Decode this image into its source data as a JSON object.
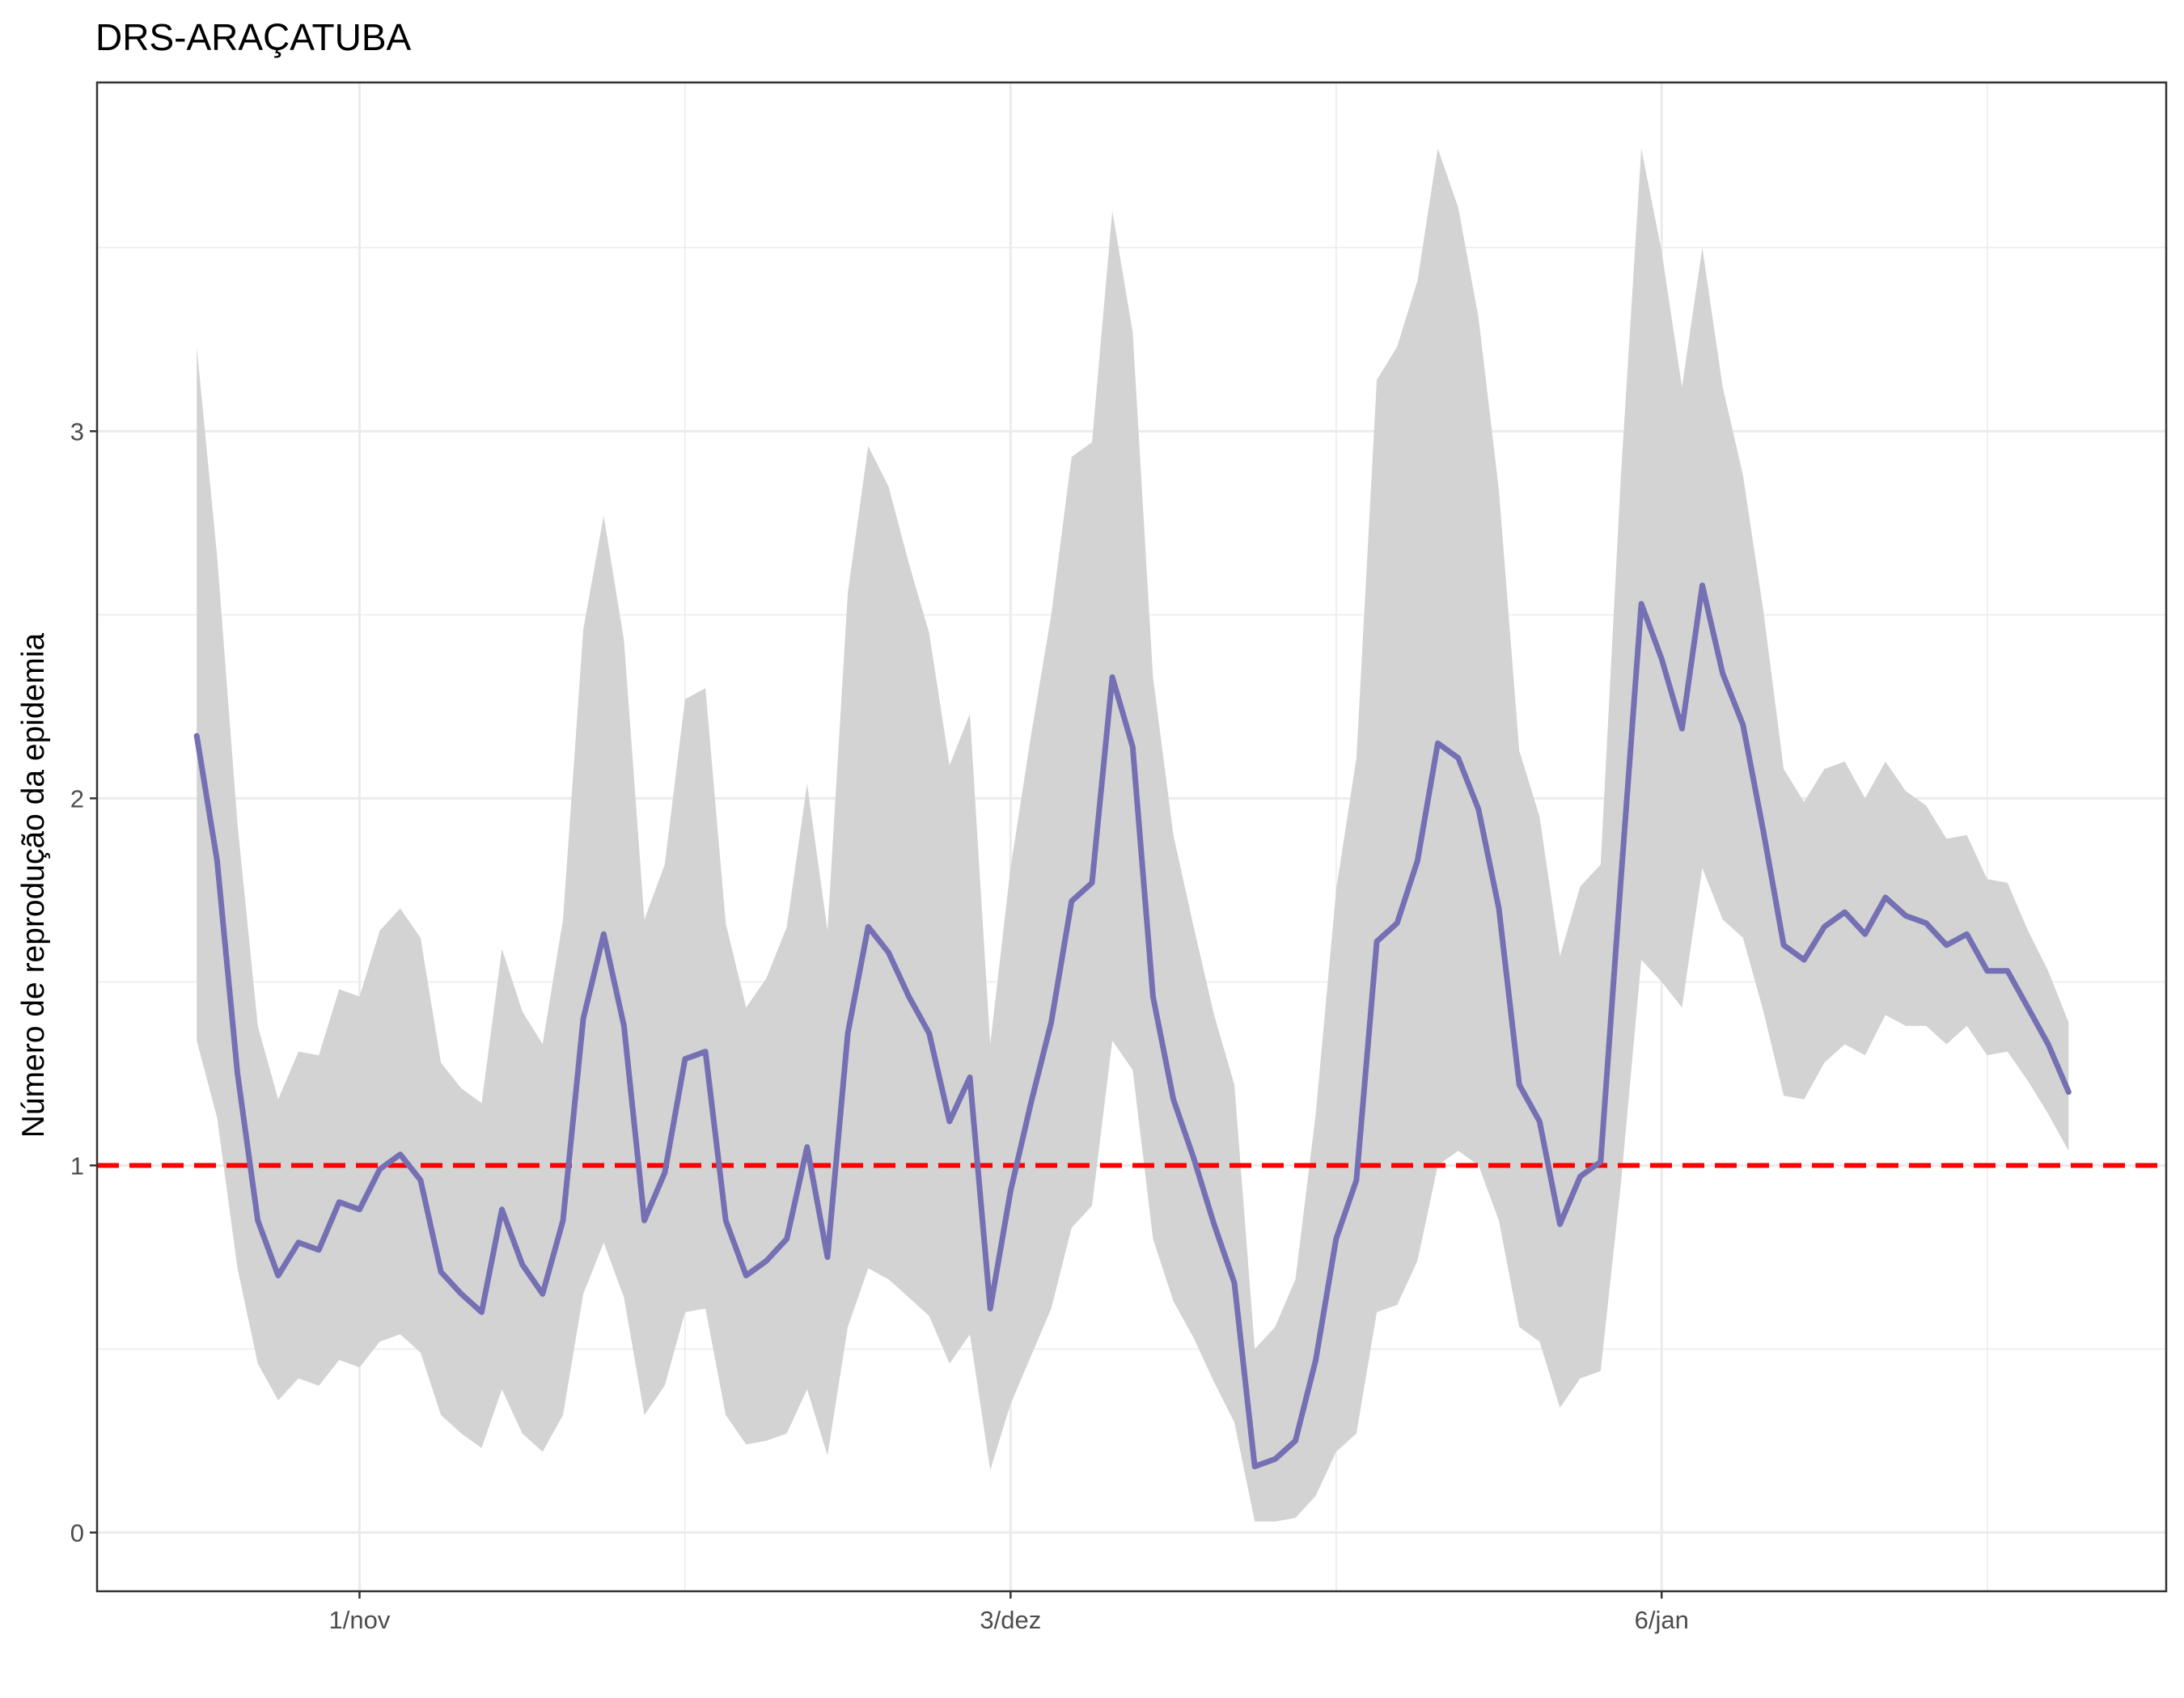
{
  "chart_data": {
    "type": "line",
    "title": "DRS-ARAÇATUBA",
    "xlabel": "",
    "ylabel": "Número de reprodução da epidemia",
    "x_tick_labels": [
      "1/nov",
      "3/dez",
      "6/jan"
    ],
    "y_tick_labels": [
      "0",
      "1",
      "2",
      "3"
    ],
    "y_ticks": [
      0,
      1,
      2,
      3
    ],
    "ylim": [
      -0.16,
      3.95
    ],
    "xlim": [
      -4.9,
      96.8
    ],
    "grid": true,
    "colors": {
      "line": "#7570b3",
      "ribbon": "#d3d3d3",
      "threshold": "#ff0000",
      "grid": "#ebebeb",
      "frame": "#333333"
    },
    "threshold": 1,
    "series": [
      {
        "values": [
          2.17,
          1.83,
          1.25,
          0.85,
          0.7,
          0.79,
          0.77,
          0.9,
          0.88,
          0.99,
          1.03,
          0.96,
          0.71,
          0.65,
          0.6,
          0.88,
          0.73,
          0.65,
          0.85,
          1.4,
          1.63,
          1.38,
          0.85,
          0.98,
          1.29,
          1.31,
          0.85,
          0.7,
          0.74,
          0.8,
          1.05,
          0.75,
          1.36,
          1.65,
          1.58,
          1.46,
          1.36,
          1.12,
          1.24,
          0.61,
          0.93,
          1.17,
          1.39,
          1.72,
          1.77,
          2.33,
          2.14,
          1.46,
          1.18,
          1.02,
          0.84,
          0.68,
          0.18,
          0.2,
          0.25,
          0.47,
          0.8,
          0.96,
          1.61,
          1.66,
          1.83,
          2.15,
          2.11,
          1.97,
          1.7,
          1.22,
          1.12,
          0.84,
          0.97,
          1.01,
          1.78,
          2.53,
          2.38,
          2.19,
          2.58,
          2.34,
          2.2,
          1.91,
          1.6,
          1.56,
          1.65,
          1.69,
          1.63,
          1.73,
          1.68,
          1.66,
          1.6,
          1.63,
          1.53,
          1.53,
          1.43,
          1.33,
          1.2
        ]
      }
    ],
    "ribbon_upper": [
      3.23,
      2.66,
      1.93,
      1.38,
      1.18,
      1.31,
      1.3,
      1.48,
      1.46,
      1.64,
      1.7,
      1.62,
      1.28,
      1.21,
      1.17,
      1.59,
      1.42,
      1.33,
      1.67,
      2.46,
      2.77,
      2.43,
      1.67,
      1.82,
      2.27,
      2.3,
      1.66,
      1.43,
      1.51,
      1.65,
      2.04,
      1.64,
      2.56,
      2.96,
      2.85,
      2.64,
      2.45,
      2.09,
      2.23,
      1.33,
      1.81,
      2.17,
      2.5,
      2.93,
      2.97,
      3.6,
      3.27,
      2.33,
      1.9,
      1.65,
      1.41,
      1.22,
      0.5,
      0.56,
      0.69,
      1.14,
      1.75,
      2.11,
      3.14,
      3.23,
      3.41,
      3.77,
      3.61,
      3.31,
      2.84,
      2.13,
      1.95,
      1.57,
      1.76,
      1.82,
      2.88,
      3.77,
      3.49,
      3.12,
      3.5,
      3.12,
      2.88,
      2.51,
      2.08,
      1.99,
      2.08,
      2.1,
      2.0,
      2.1,
      2.02,
      1.98,
      1.89,
      1.9,
      1.78,
      1.77,
      1.64,
      1.53,
      1.39
    ],
    "ribbon_lower": [
      1.34,
      1.13,
      0.72,
      0.46,
      0.36,
      0.42,
      0.4,
      0.47,
      0.45,
      0.52,
      0.54,
      0.49,
      0.32,
      0.27,
      0.23,
      0.39,
      0.27,
      0.22,
      0.32,
      0.65,
      0.79,
      0.64,
      0.32,
      0.4,
      0.6,
      0.61,
      0.32,
      0.24,
      0.25,
      0.27,
      0.39,
      0.21,
      0.56,
      0.72,
      0.69,
      0.64,
      0.59,
      0.46,
      0.54,
      0.17,
      0.35,
      0.48,
      0.61,
      0.83,
      0.89,
      1.34,
      1.26,
      0.8,
      0.63,
      0.53,
      0.41,
      0.3,
      0.03,
      0.03,
      0.04,
      0.1,
      0.22,
      0.27,
      0.6,
      0.62,
      0.74,
      1.0,
      1.04,
      1.0,
      0.85,
      0.56,
      0.52,
      0.34,
      0.42,
      0.44,
      0.95,
      1.56,
      1.5,
      1.43,
      1.81,
      1.67,
      1.62,
      1.42,
      1.19,
      1.18,
      1.28,
      1.33,
      1.3,
      1.41,
      1.38,
      1.38,
      1.33,
      1.38,
      1.3,
      1.31,
      1.23,
      1.14,
      1.04
    ]
  }
}
